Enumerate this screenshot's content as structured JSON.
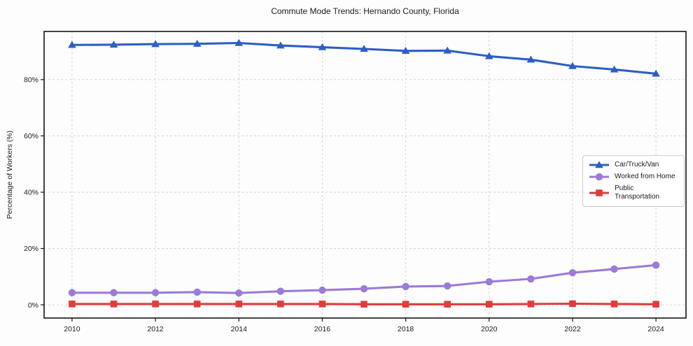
{
  "chart_data": {
    "type": "line",
    "title": "Commute Mode Trends: Hernando County, Florida",
    "xlabel": "",
    "ylabel": "Percentage of Workers (%)",
    "x": [
      2010,
      2011,
      2012,
      2013,
      2014,
      2015,
      2016,
      2017,
      2018,
      2019,
      2020,
      2021,
      2022,
      2023,
      2024
    ],
    "series": [
      {
        "name": "Car/Truck/Van",
        "color": "#2c5fc4",
        "marker": "triangle",
        "values": [
          92.3,
          92.4,
          92.6,
          92.7,
          93.0,
          92.1,
          91.5,
          90.9,
          90.2,
          90.3,
          88.3,
          87.1,
          84.8,
          83.6,
          82.1
        ]
      },
      {
        "name": "Worked from Home",
        "color": "#9b7ad9",
        "marker": "circle",
        "values": [
          4.3,
          4.3,
          4.3,
          4.5,
          4.2,
          4.8,
          5.2,
          5.7,
          6.5,
          6.7,
          8.2,
          9.2,
          11.4,
          12.7,
          14.1
        ]
      },
      {
        "name": "Public Transportation",
        "color": "#e03c3c",
        "marker": "square",
        "values": [
          0.3,
          0.3,
          0.3,
          0.3,
          0.3,
          0.3,
          0.3,
          0.2,
          0.2,
          0.2,
          0.2,
          0.3,
          0.4,
          0.3,
          0.2
        ]
      }
    ],
    "x_ticks": [
      2010,
      2012,
      2014,
      2016,
      2018,
      2020,
      2022,
      2024
    ],
    "y_ticks": [
      0,
      20,
      40,
      60,
      80
    ],
    "y_tick_suffix": "%",
    "xlim": [
      2009.33,
      2024.72
    ],
    "ylim": [
      -4.7,
      97.1
    ],
    "grid": true,
    "legend_position": "right"
  }
}
